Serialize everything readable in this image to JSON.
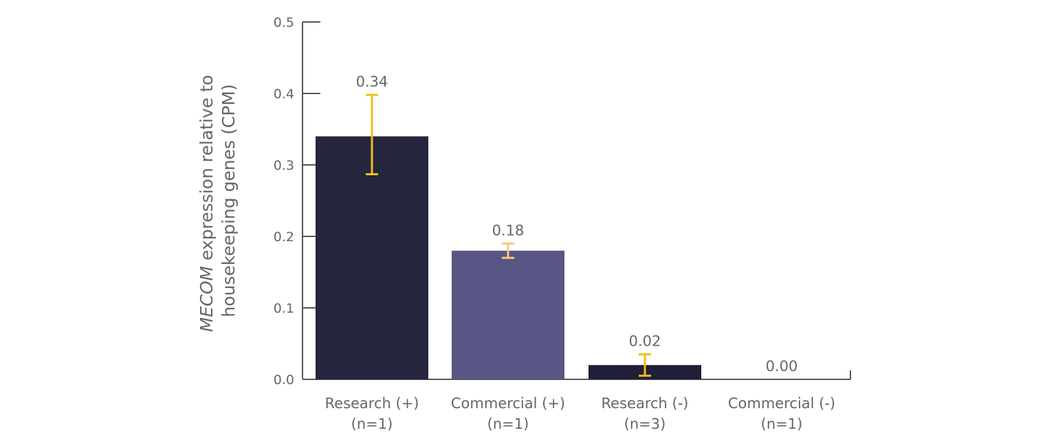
{
  "chart_data": {
    "type": "bar",
    "categories": [
      [
        "Research (+)",
        "(n=1)"
      ],
      [
        "Commercial (+)",
        "(n=1)"
      ],
      [
        "Research (-)",
        "(n=3)"
      ],
      [
        "Commercial (-)",
        "(n=1)"
      ]
    ],
    "values": [
      0.34,
      0.18,
      0.02,
      0.0
    ],
    "value_labels": [
      "0.34",
      "0.18",
      "0.02",
      "0.00"
    ],
    "error_bars": [
      {
        "low": 0.287,
        "high": 0.398
      },
      {
        "low": 0.17,
        "high": 0.19
      },
      {
        "low": 0.005,
        "high": 0.035
      },
      null
    ],
    "bar_colors": [
      "#25253d",
      "#585684",
      "#1f1f38",
      "#1f1f38"
    ],
    "error_bar_colors": [
      "#f2bd1d",
      "#f9c77e",
      "#f2bd1d",
      "#f2bd1d"
    ],
    "ylabel_italic": "MECOM",
    "ylabel_line1": " expression relative to",
    "ylabel_line2": "housekeeping genes (CPM)",
    "xlabel": "",
    "ylim": [
      0,
      0.5
    ],
    "yticks": [
      0.0,
      0.1,
      0.2,
      0.3,
      0.4,
      0.5
    ],
    "ytick_labels": [
      "0.0",
      "0.1",
      "0.2",
      "0.3",
      "0.4",
      "0.5"
    ],
    "grid": false,
    "axis_color": "#555555"
  }
}
